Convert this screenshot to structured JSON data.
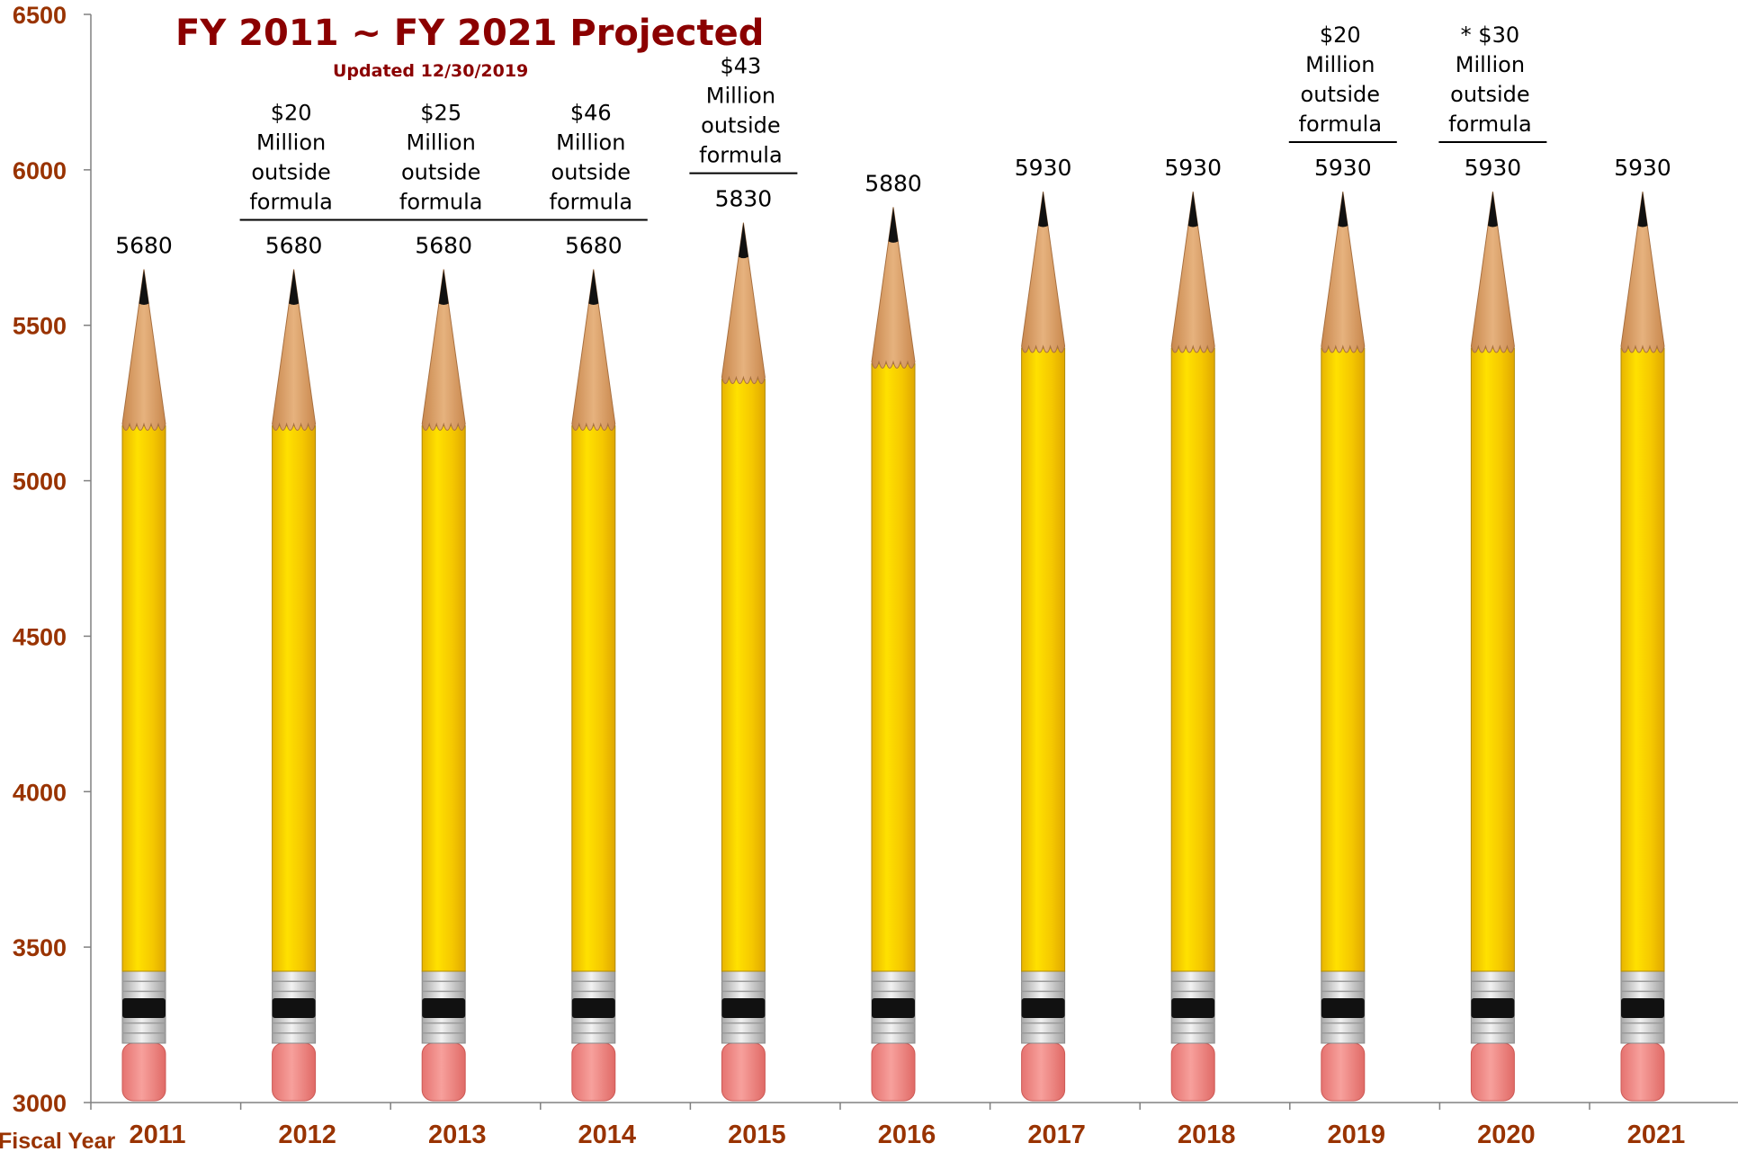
{
  "chart_data": {
    "type": "bar",
    "title": "FY 2011 ~ FY 2021 Projected",
    "subtitle": "Updated 12/30/2019",
    "xlabel": "Fiscal Year",
    "ylabel": "",
    "ylim": [
      3000,
      6500
    ],
    "yticks": [
      3000,
      3500,
      4000,
      4500,
      5000,
      5500,
      6000,
      6500
    ],
    "categories": [
      "2011",
      "2012",
      "2013",
      "2014",
      "2015",
      "2016",
      "2017",
      "2018",
      "2019",
      "2020",
      "2021"
    ],
    "values": [
      5680,
      5680,
      5680,
      5680,
      5830,
      5880,
      5930,
      5930,
      5930,
      5930,
      5930
    ],
    "value_labels": [
      "5680",
      "5680",
      "5680",
      "5680",
      "5830",
      "5880",
      "5930",
      "5930",
      "5930",
      "5930",
      "5930"
    ],
    "annotations": [
      {
        "category": "2012",
        "lines": [
          "$20",
          "Million",
          "outside",
          "formula"
        ]
      },
      {
        "category": "2013",
        "lines": [
          "$25",
          "Million",
          "outside",
          "formula"
        ]
      },
      {
        "category": "2014",
        "lines": [
          "$46",
          "Million",
          "outside",
          "formula"
        ]
      },
      {
        "category": "2015",
        "lines": [
          "$43",
          "Million",
          "outside",
          "formula"
        ]
      },
      {
        "category": "2019",
        "lines": [
          "$20",
          "Million",
          "outside",
          "formula"
        ]
      },
      {
        "category": "2020",
        "lines": [
          "* $30",
          "Million",
          "outside",
          "formula"
        ]
      }
    ],
    "grid": false,
    "legend": "none",
    "mark_style": "pencil",
    "colors": {
      "pencil_body": "#f5c800",
      "pencil_wood": "#d9a06a",
      "pencil_lead": "#111111",
      "ferrule": "#c8c8c8",
      "eraser": "#ef8a86",
      "axis_text": "#993300",
      "title": "#8b0000"
    }
  }
}
